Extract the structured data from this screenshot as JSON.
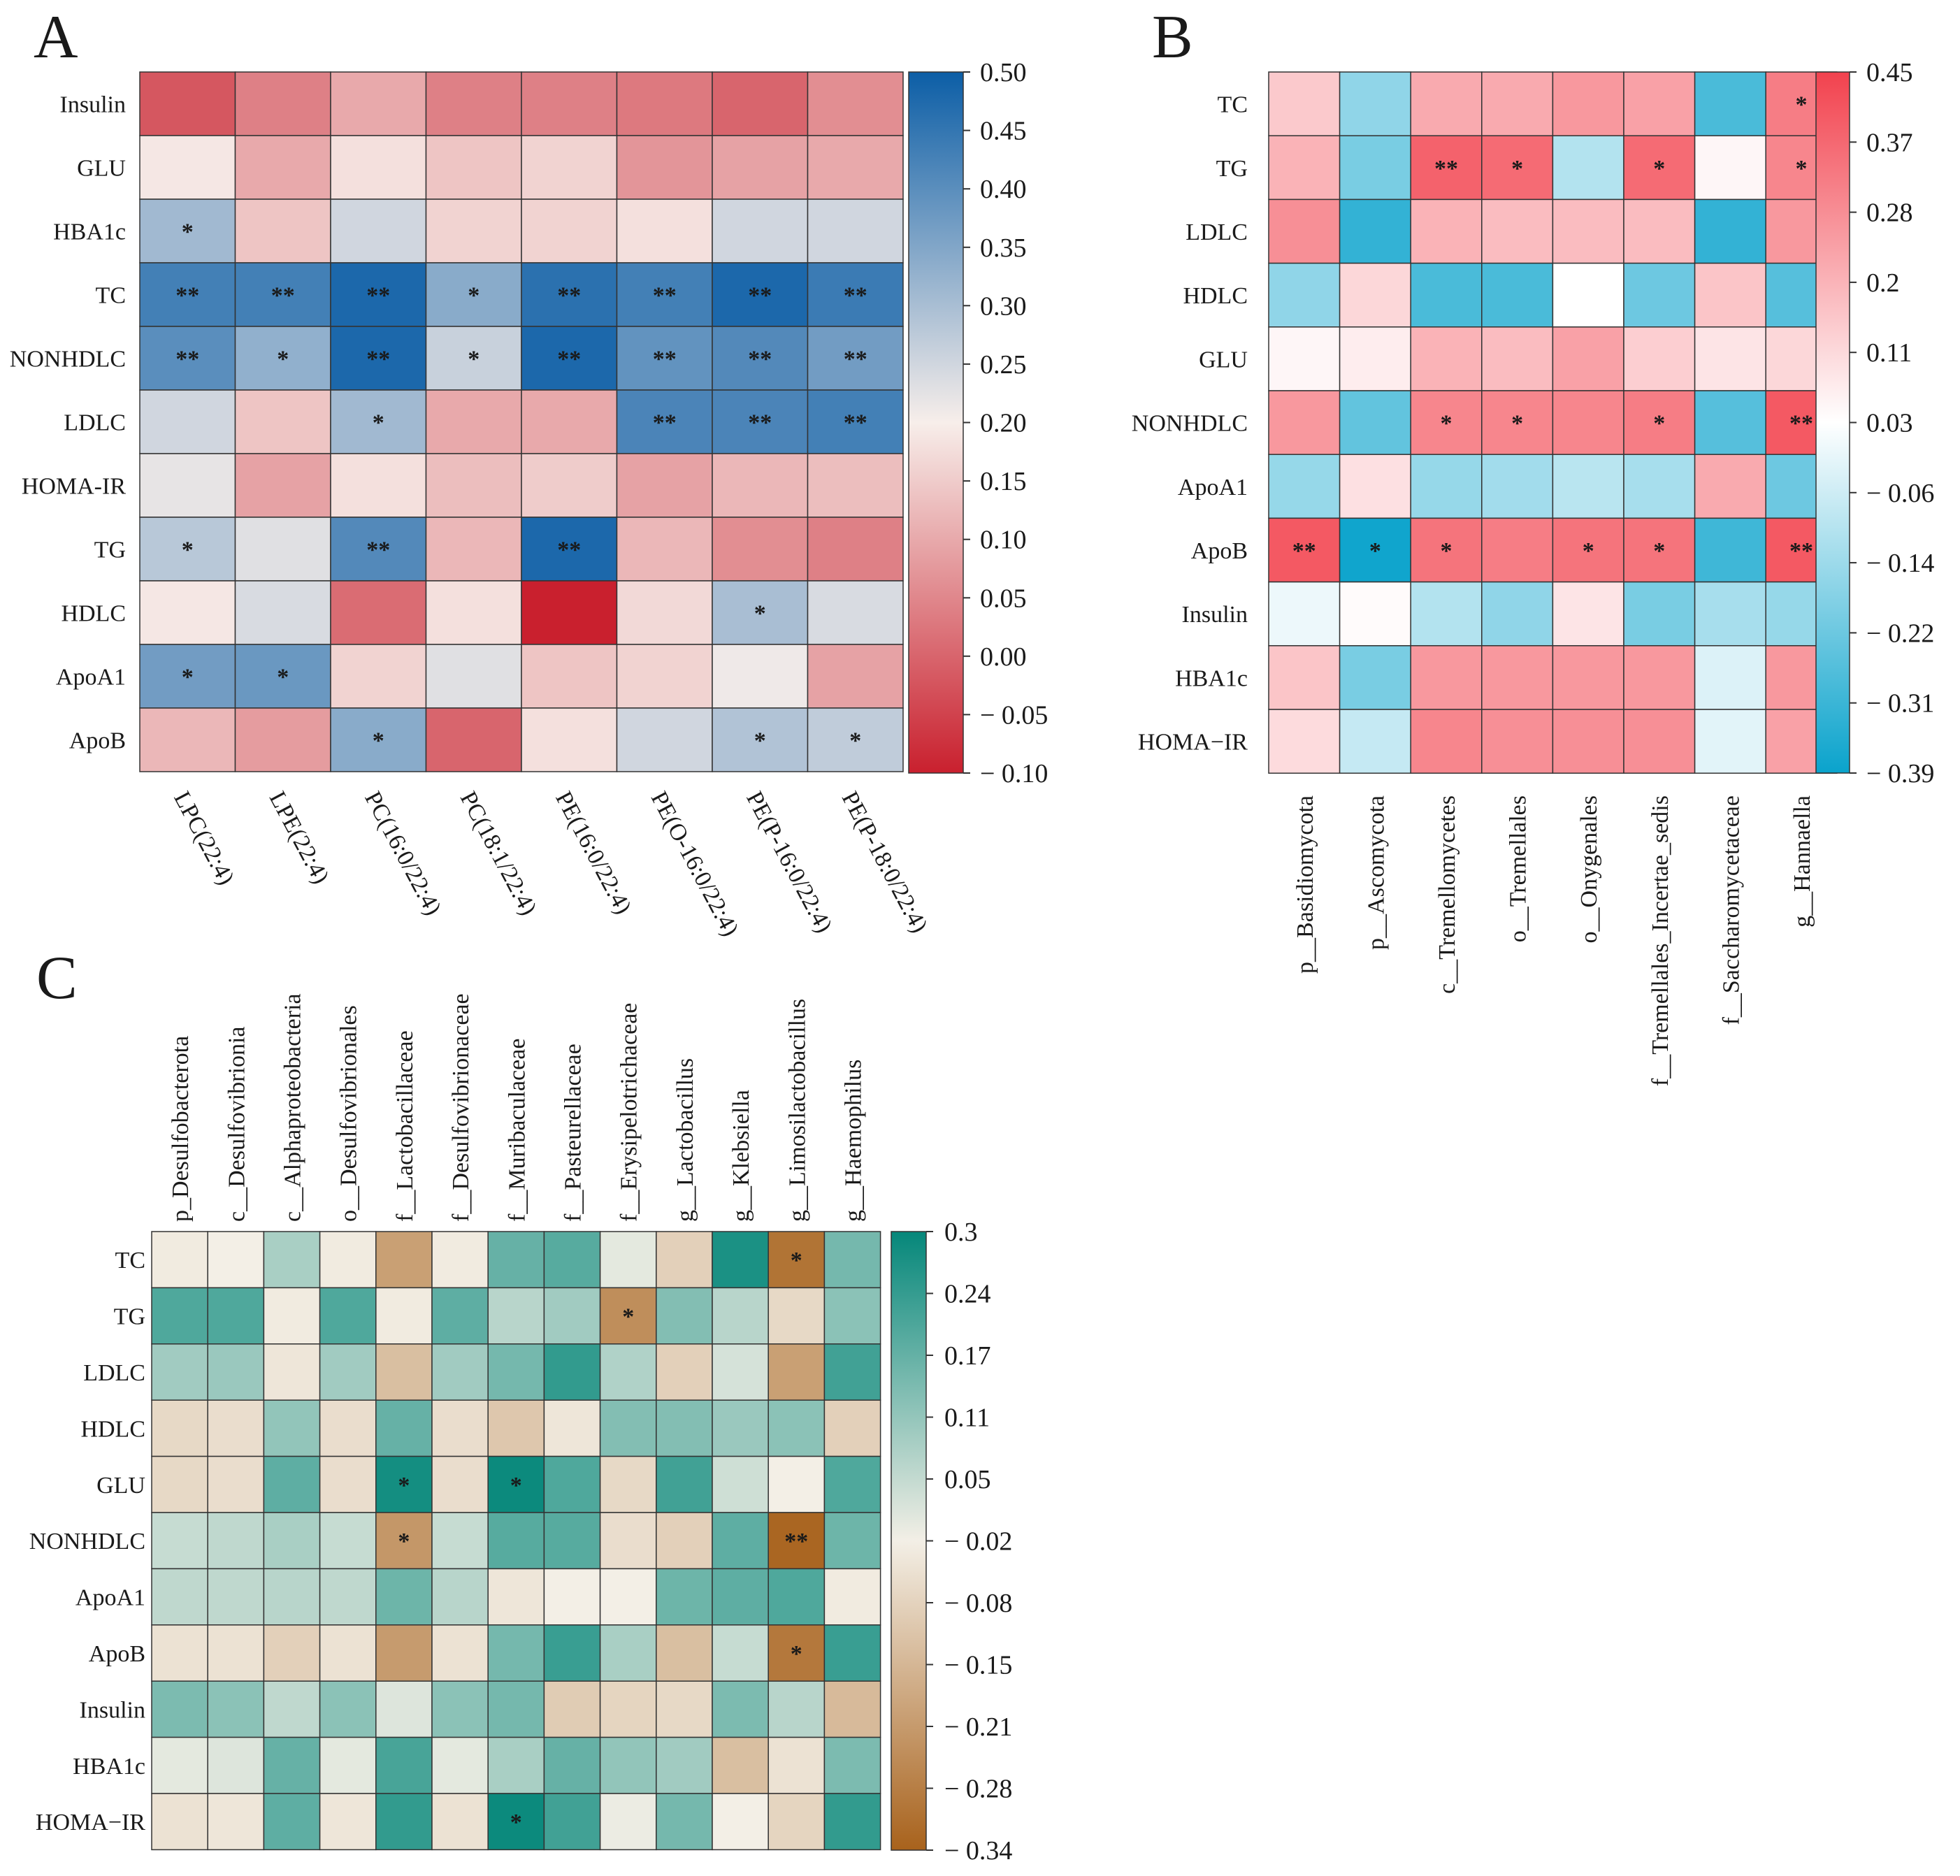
{
  "chart_data": [
    {
      "type": "heatmap",
      "panel": "A",
      "rows": [
        "Insulin",
        "GLU",
        "HBA1c",
        "TC",
        "NONHDLC",
        "LDLC",
        "HOMA-IR",
        "TG",
        "HDLC",
        "ApoA1",
        "ApoB"
      ],
      "columns": [
        "LPC(22:4)",
        "LPE(22:4)",
        "PC(16:0/22:4)",
        "PC(18:1/22:4)",
        "PE(16:0/22:4)",
        "PE(O-16:0/22:4)",
        "PE(P-16:0/22:4)",
        "PE(P-18:0/22:4)"
      ],
      "values": [
        [
          -0.02,
          0.04,
          0.1,
          0.04,
          0.04,
          0.03,
          0.0,
          0.06
        ],
        [
          0.19,
          0.1,
          0.18,
          0.14,
          0.16,
          0.07,
          0.09,
          0.1
        ],
        [
          0.31,
          0.14,
          0.25,
          0.16,
          0.16,
          0.18,
          0.25,
          0.25
        ],
        [
          0.43,
          0.43,
          0.48,
          0.34,
          0.46,
          0.43,
          0.48,
          0.44
        ],
        [
          0.4,
          0.33,
          0.48,
          0.26,
          0.48,
          0.39,
          0.41,
          0.37
        ],
        [
          0.25,
          0.14,
          0.31,
          0.1,
          0.1,
          0.42,
          0.42,
          0.43
        ],
        [
          0.22,
          0.09,
          0.18,
          0.13,
          0.15,
          0.09,
          0.12,
          0.13
        ],
        [
          0.28,
          0.23,
          0.41,
          0.12,
          0.48,
          0.12,
          0.06,
          0.04
        ],
        [
          0.19,
          0.24,
          0.01,
          0.18,
          -0.1,
          0.17,
          0.3,
          0.24
        ],
        [
          0.37,
          0.38,
          0.16,
          0.23,
          0.14,
          0.16,
          0.21,
          0.09
        ],
        [
          0.12,
          0.08,
          0.34,
          0.0,
          0.18,
          0.25,
          0.29,
          0.27
        ]
      ],
      "significance": [
        [
          "",
          "",
          "",
          "",
          "",
          "",
          "",
          ""
        ],
        [
          "",
          "",
          "",
          "",
          "",
          "",
          "",
          ""
        ],
        [
          "*",
          "",
          "",
          "",
          "",
          "",
          "",
          ""
        ],
        [
          "**",
          "**",
          "**",
          "*",
          "**",
          "**",
          "**",
          "**"
        ],
        [
          "**",
          "*",
          "**",
          "*",
          "**",
          "**",
          "**",
          "**"
        ],
        [
          "",
          "",
          "*",
          "",
          "",
          "**",
          "**",
          "**"
        ],
        [
          "",
          "",
          "",
          "",
          "",
          "",
          "",
          ""
        ],
        [
          "*",
          "",
          "**",
          "",
          "**",
          "",
          "",
          ""
        ],
        [
          "",
          "",
          "",
          "",
          "",
          "",
          "*",
          ""
        ],
        [
          "*",
          "*",
          "",
          "",
          "",
          "",
          "",
          ""
        ],
        [
          "",
          "",
          "*",
          "",
          "",
          "",
          "*",
          "*"
        ]
      ],
      "colorbar": {
        "range": [
          -0.1,
          0.5
        ],
        "colors": {
          "low": "#c9202e",
          "mid": "#f7eeea",
          "high": "#0c5ea6"
        },
        "ticks": [
          "0.50",
          "0.45",
          "0.40",
          "0.35",
          "0.30",
          "0.25",
          "0.20",
          "0.15",
          "0.10",
          "0.05",
          "0.00",
          "− 0.05",
          "− 0.10"
        ]
      }
    },
    {
      "type": "heatmap",
      "panel": "B",
      "rows": [
        "TC",
        "TG",
        "LDLC",
        "HDLC",
        "GLU",
        "NONHDLC",
        "ApoA1",
        "ApoB",
        "Insulin",
        "HBA1c",
        "HOMA−IR"
      ],
      "columns": [
        "p__Basidiomycota",
        "p__Ascomycota",
        "c__Tremellomycetes",
        "o__Tremellales",
        "o__Onygenales",
        "f__Tremellales_Incertae_sedis",
        "f__Saccharomycetaceae",
        "g__Hannaella"
      ],
      "values": [
        [
          0.15,
          -0.16,
          0.22,
          0.22,
          0.26,
          0.24,
          -0.28,
          0.32
        ],
        [
          0.2,
          -0.2,
          0.38,
          0.36,
          -0.1,
          0.36,
          0.05,
          0.3
        ],
        [
          0.28,
          -0.32,
          0.2,
          0.18,
          0.18,
          0.18,
          -0.32,
          0.26
        ],
        [
          -0.16,
          0.12,
          -0.28,
          -0.28,
          0.03,
          -0.22,
          0.16,
          -0.26
        ],
        [
          0.05,
          0.07,
          0.2,
          0.18,
          0.24,
          0.14,
          0.09,
          0.12
        ],
        [
          0.26,
          -0.24,
          0.3,
          0.3,
          0.3,
          0.32,
          -0.26,
          0.4
        ],
        [
          -0.15,
          0.1,
          -0.15,
          -0.13,
          -0.09,
          -0.12,
          0.22,
          -0.22
        ],
        [
          0.4,
          -0.38,
          0.34,
          0.32,
          0.34,
          0.34,
          -0.3,
          0.4
        ],
        [
          0.0,
          0.04,
          -0.1,
          -0.16,
          0.09,
          -0.2,
          -0.12,
          -0.15
        ],
        [
          0.16,
          -0.2,
          0.26,
          0.26,
          0.26,
          0.26,
          -0.03,
          0.26
        ],
        [
          0.11,
          -0.07,
          0.3,
          0.28,
          0.28,
          0.28,
          -0.02,
          0.24
        ]
      ],
      "significance": [
        [
          "",
          "",
          "",
          "",
          "",
          "",
          "",
          "*"
        ],
        [
          "",
          "",
          "**",
          "*",
          "",
          "*",
          "",
          "*"
        ],
        [
          "",
          "",
          "",
          "",
          "",
          "",
          "",
          ""
        ],
        [
          "",
          "",
          "",
          "",
          "",
          "",
          "",
          ""
        ],
        [
          "",
          "",
          "",
          "",
          "",
          "",
          "",
          ""
        ],
        [
          "",
          "",
          "*",
          "*",
          "",
          "*",
          "",
          "**"
        ],
        [
          "",
          "",
          "",
          "",
          "",
          "",
          "",
          ""
        ],
        [
          "**",
          "*",
          "*",
          "",
          "*",
          "*",
          "",
          "**"
        ],
        [
          "",
          "",
          "",
          "",
          "",
          "",
          "",
          ""
        ],
        [
          "",
          "",
          "",
          "",
          "",
          "",
          "",
          ""
        ],
        [
          "",
          "",
          "",
          "",
          "",
          "",
          "",
          ""
        ]
      ],
      "colorbar": {
        "range": [
          -0.39,
          0.45
        ],
        "colors": {
          "low": "#0aa3cc",
          "mid": "#ffffff",
          "high": "#f2424e"
        },
        "ticks": [
          "0.45",
          "0.37",
          "0.28",
          "0.2",
          "0.11",
          "0.03",
          "− 0.06",
          "− 0.14",
          "− 0.22",
          "− 0.31",
          "− 0.39"
        ]
      }
    },
    {
      "type": "heatmap",
      "panel": "C",
      "rows": [
        "TC",
        "TG",
        "LDLC",
        "HDLC",
        "GLU",
        "NONHDLC",
        "ApoA1",
        "ApoB",
        "Insulin",
        "HBA1c",
        "HOMA−IR"
      ],
      "columns": [
        "p_Desulfobacterota",
        "c__Desulfovibrionia",
        "c__Alphaproteobacteria",
        "o__Desulfovibrionales",
        "f__Lactobacillaceae",
        "f__Desulfovibrionaceae",
        "f__Muribaculaceae",
        "f__Pasteurellaceae",
        "f__Erysipelotrichaceae",
        "g__Lactobacillus",
        "g__Klebsiella",
        "g__Limosilactobacillus",
        "g__Haemophilus"
      ],
      "values": [
        [
          -0.03,
          -0.02,
          0.08,
          -0.03,
          -0.2,
          -0.03,
          0.17,
          0.19,
          0.0,
          -0.09,
          0.27,
          -0.3,
          0.15
        ],
        [
          0.2,
          0.2,
          -0.03,
          0.2,
          -0.03,
          0.18,
          0.06,
          0.09,
          -0.24,
          0.13,
          0.06,
          -0.07,
          0.12
        ],
        [
          0.09,
          0.1,
          -0.04,
          0.09,
          -0.13,
          0.09,
          0.15,
          0.24,
          0.07,
          -0.09,
          0.02,
          -0.2,
          0.22
        ],
        [
          -0.07,
          -0.06,
          0.11,
          -0.06,
          0.17,
          -0.06,
          -0.11,
          -0.04,
          0.13,
          0.13,
          0.1,
          0.12,
          -0.09
        ],
        [
          -0.07,
          -0.06,
          0.18,
          -0.06,
          0.28,
          -0.06,
          0.29,
          0.2,
          -0.07,
          0.22,
          0.03,
          -0.02,
          0.2
        ],
        [
          0.04,
          0.05,
          0.08,
          0.04,
          -0.22,
          0.04,
          0.19,
          0.19,
          -0.06,
          -0.09,
          0.18,
          -0.33,
          0.16
        ],
        [
          0.05,
          0.05,
          0.06,
          0.05,
          0.16,
          0.06,
          -0.04,
          -0.02,
          -0.02,
          0.16,
          0.18,
          0.2,
          -0.03
        ],
        [
          -0.05,
          -0.05,
          -0.09,
          -0.05,
          -0.21,
          -0.05,
          0.15,
          0.23,
          0.08,
          -0.13,
          0.04,
          -0.29,
          0.23
        ],
        [
          0.14,
          0.12,
          0.05,
          0.12,
          0.01,
          0.12,
          0.15,
          -0.1,
          -0.08,
          -0.07,
          0.14,
          0.06,
          -0.14
        ],
        [
          0.0,
          0.01,
          0.17,
          0.0,
          0.21,
          0.0,
          0.08,
          0.17,
          0.11,
          0.09,
          -0.13,
          -0.05,
          0.14
        ],
        [
          -0.05,
          -0.04,
          0.18,
          -0.04,
          0.24,
          -0.05,
          0.29,
          0.22,
          -0.01,
          0.15,
          -0.02,
          -0.08,
          0.24
        ]
      ],
      "significance": [
        [
          "",
          "",
          "",
          "",
          "",
          "",
          "",
          "",
          "",
          "",
          "",
          "*",
          ""
        ],
        [
          "",
          "",
          "",
          "",
          "",
          "",
          "",
          "",
          "*",
          "",
          "",
          "",
          ""
        ],
        [
          "",
          "",
          "",
          "",
          "",
          "",
          "",
          "",
          "",
          "",
          "",
          "",
          ""
        ],
        [
          "",
          "",
          "",
          "",
          "",
          "",
          "",
          "",
          "",
          "",
          "",
          "",
          ""
        ],
        [
          "",
          "",
          "",
          "",
          "*",
          "",
          "*",
          "",
          "",
          "",
          "",
          "",
          ""
        ],
        [
          "",
          "",
          "",
          "",
          "*",
          "",
          "",
          "",
          "",
          "",
          "",
          "**",
          ""
        ],
        [
          "",
          "",
          "",
          "",
          "",
          "",
          "",
          "",
          "",
          "",
          "",
          "",
          ""
        ],
        [
          "",
          "",
          "",
          "",
          "",
          "",
          "",
          "",
          "",
          "",
          "",
          "*",
          ""
        ],
        [
          "",
          "",
          "",
          "",
          "",
          "",
          "",
          "",
          "",
          "",
          "",
          "",
          ""
        ],
        [
          "",
          "",
          "",
          "",
          "",
          "",
          "",
          "",
          "",
          "",
          "",
          "",
          ""
        ],
        [
          "",
          "",
          "",
          "",
          "",
          "",
          "*",
          "",
          "",
          "",
          "",
          "",
          ""
        ]
      ],
      "colorbar": {
        "range": [
          -0.34,
          0.3
        ],
        "colors": {
          "low": "#a8621c",
          "mid": "#f3efe6",
          "high": "#05877a"
        },
        "ticks": [
          "0.3",
          "0.24",
          "0.17",
          "0.11",
          "0.05",
          "− 0.02",
          "− 0.08",
          "− 0.15",
          "− 0.21",
          "− 0.28",
          "− 0.34"
        ]
      }
    }
  ]
}
